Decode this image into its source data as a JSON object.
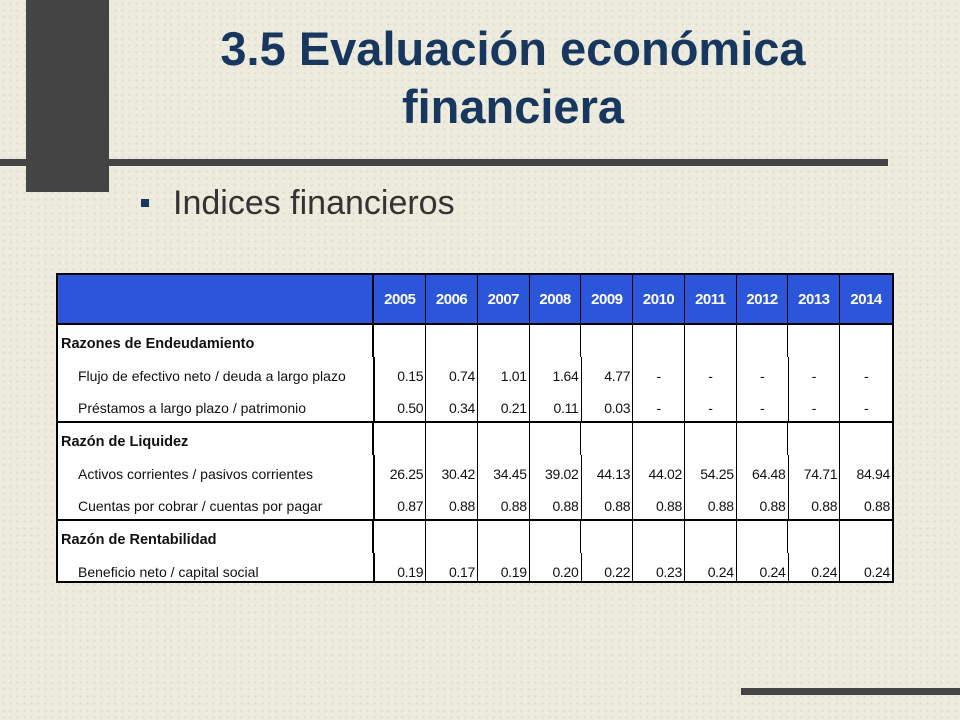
{
  "slide": {
    "title": "3.5 Evaluación económica financiera",
    "bullet": "Indices financieros"
  },
  "table": {
    "years": [
      "2005",
      "2006",
      "2007",
      "2008",
      "2009",
      "2010",
      "2011",
      "2012",
      "2013",
      "2014"
    ],
    "groups": [
      {
        "title": "Razones de Endeudamiento",
        "rows": [
          {
            "label": "Flujo de efectivo neto / deuda a largo plazo",
            "values": [
              "0.15",
              "0.74",
              "1.01",
              "1.64",
              "4.77",
              "-",
              "-",
              "-",
              "-",
              "-"
            ]
          },
          {
            "label": "Préstamos a largo plazo / patrimonio",
            "values": [
              "0.50",
              "0.34",
              "0.21",
              "0.11",
              "0.03",
              "-",
              "-",
              "-",
              "-",
              "-"
            ]
          }
        ]
      },
      {
        "title": "Razón de Liquidez",
        "rows": [
          {
            "label": "Activos corrientes / pasivos corrientes",
            "values": [
              "26.25",
              "30.42",
              "34.45",
              "39.02",
              "44.13",
              "44.02",
              "54.25",
              "64.48",
              "74.71",
              "84.94"
            ]
          },
          {
            "label": "Cuentas por cobrar / cuentas por pagar",
            "values": [
              "0.87",
              "0.88",
              "0.88",
              "0.88",
              "0.88",
              "0.88",
              "0.88",
              "0.88",
              "0.88",
              "0.88"
            ]
          }
        ]
      },
      {
        "title": "Razón de Rentabilidad",
        "rows": [
          {
            "label": "Beneficio neto / capital social",
            "values": [
              "0.19",
              "0.17",
              "0.19",
              "0.20",
              "0.22",
              "0.23",
              "0.24",
              "0.24",
              "0.24",
              "0.24"
            ]
          }
        ]
      }
    ]
  }
}
